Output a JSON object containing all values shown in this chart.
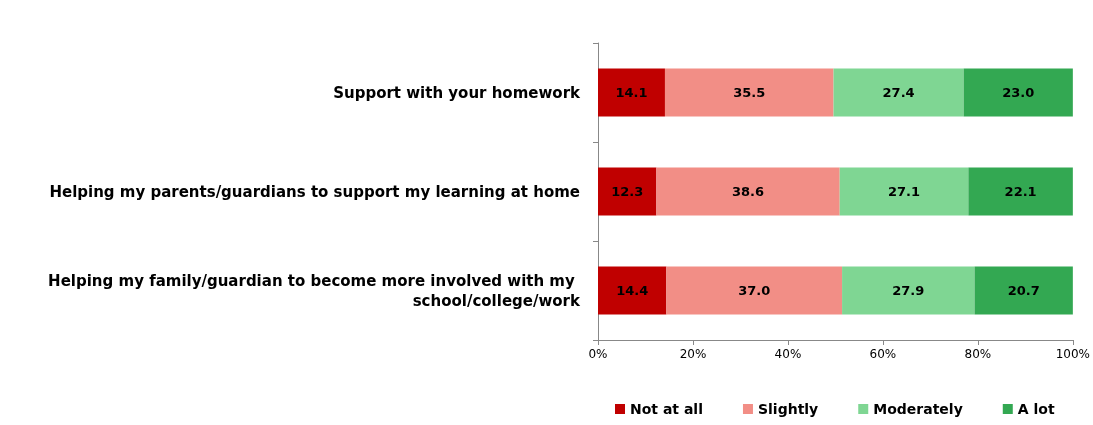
{
  "chart_data": {
    "type": "bar",
    "orientation": "horizontal",
    "stacked": true,
    "categories": [
      "Support with your homework",
      "Helping my parents/guardians to support my learning at home",
      "Helping my family/guardian to become more involved with my school/college/work"
    ],
    "series": [
      {
        "name": "Not at all",
        "color": "#c00000",
        "values": [
          14.1,
          12.3,
          14.4
        ],
        "value_labels": [
          "14.1",
          "12.3",
          "14.4"
        ]
      },
      {
        "name": "Slightly",
        "color": "#f28e86",
        "values": [
          35.5,
          38.6,
          37.0
        ],
        "value_labels": [
          "35.5",
          "38.6",
          "37.0"
        ]
      },
      {
        "name": "Moderately",
        "color": "#7fd693",
        "values": [
          27.4,
          27.1,
          27.9
        ],
        "value_labels": [
          "27.4",
          "27.1",
          "27.9"
        ]
      },
      {
        "name": "A lot",
        "color": "#33a852",
        "values": [
          23.0,
          22.1,
          20.7
        ],
        "value_labels": [
          "23.0",
          "22.1",
          "20.7"
        ]
      }
    ],
    "xlim": [
      0,
      100
    ],
    "xticks": [
      {
        "value": 0,
        "label": "0%"
      },
      {
        "value": 20,
        "label": "20%"
      },
      {
        "value": 40,
        "label": "40%"
      },
      {
        "value": 60,
        "label": "60%"
      },
      {
        "value": 80,
        "label": "80%"
      },
      {
        "value": 100,
        "label": "100%"
      }
    ],
    "grid": false,
    "legend": "bottom"
  }
}
